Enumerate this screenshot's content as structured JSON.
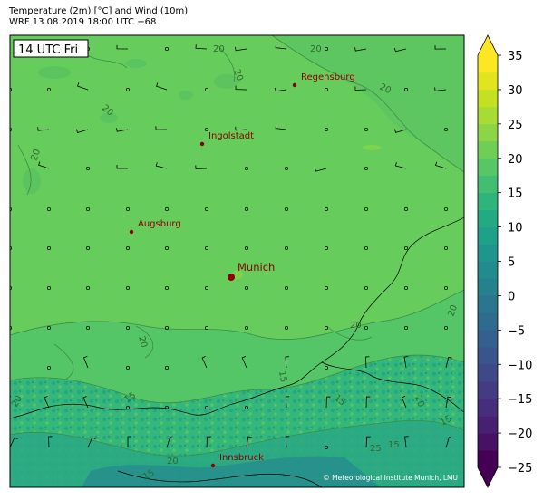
{
  "header": {
    "title_line1": "Temperature (2m) [°C] and Wind (10m)",
    "title_line2": "WRF 13.08.2019 18:00 UTC +68"
  },
  "map": {
    "time_label": "14 UTC Fri",
    "credit": "© Meteorological Institute Munich, LMU",
    "cities": [
      {
        "name": "Regensburg"
      },
      {
        "name": "Ingolstadt"
      },
      {
        "name": "Augsburg"
      },
      {
        "name": "Munich"
      },
      {
        "name": "Innsbruck"
      }
    ],
    "contour_labels": [
      "20",
      "20",
      "20",
      "20",
      "20",
      "20",
      "20",
      "20",
      "20",
      "20",
      "15",
      "15",
      "15",
      "15",
      "15",
      "15",
      "20",
      "25",
      "20"
    ]
  },
  "colorbar": {
    "ticks": [
      "35",
      "30",
      "25",
      "20",
      "15",
      "10",
      "5",
      "0",
      "−5",
      "−10",
      "−15",
      "−20",
      "−25"
    ],
    "min": -25,
    "max": 35,
    "colors": [
      "#440154",
      "#481a6c",
      "#472f7d",
      "#414487",
      "#39568c",
      "#31688e",
      "#2a788e",
      "#23888e",
      "#1f988b",
      "#22a884",
      "#35b779",
      "#54c568",
      "#7ad151",
      "#a5db36",
      "#d2e21b",
      "#fde725"
    ]
  }
}
